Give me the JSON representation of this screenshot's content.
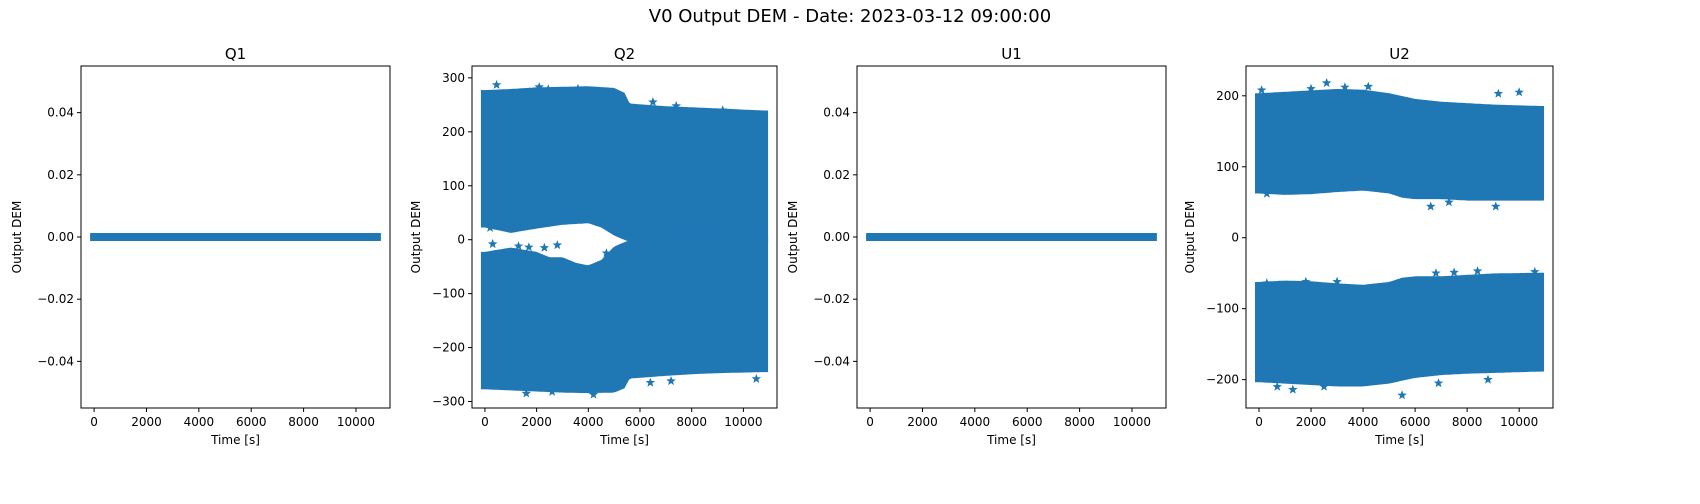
{
  "figure": {
    "suptitle": "V0 Output DEM - Date: 2023-03-12 09:00:00"
  },
  "colors": {
    "marker": "#1f77b4",
    "axes": "#000000"
  },
  "chart_data": [
    {
      "type": "scatter",
      "title": "Q1",
      "xlabel": "Time [s]",
      "ylabel": "Output DEM",
      "xlim": [
        -500,
        11300
      ],
      "ylim": [
        -0.055,
        0.055
      ],
      "xticks": [
        0,
        2000,
        4000,
        6000,
        8000,
        10000
      ],
      "xtick_labels": [
        "0",
        "2000",
        "4000",
        "6000",
        "8000",
        "10000"
      ],
      "yticks": [
        -0.04,
        -0.02,
        0.0,
        0.02,
        0.04
      ],
      "ytick_labels": [
        "−0.04",
        "−0.02",
        "0.00",
        "0.02",
        "0.04"
      ],
      "marker": "star",
      "series": [
        {
          "x_range": [
            0,
            10800
          ],
          "bands": [
            {
              "lower": [
                [
                  0,
                  0
                ],
                [
                  10800,
                  0
                ]
              ],
              "upper": [
                [
                  0,
                  0
                ],
                [
                  10800,
                  0
                ]
              ]
            }
          ]
        }
      ],
      "outliers": []
    },
    {
      "type": "scatter",
      "title": "Q2",
      "xlabel": "Time [s]",
      "ylabel": "Output DEM",
      "xlim": [
        -500,
        11300
      ],
      "ylim": [
        -312,
        322
      ],
      "xticks": [
        0,
        2000,
        4000,
        6000,
        8000,
        10000
      ],
      "xtick_labels": [
        "0",
        "2000",
        "4000",
        "6000",
        "8000",
        "10000"
      ],
      "yticks": [
        -300,
        -200,
        -100,
        0,
        100,
        200,
        300
      ],
      "ytick_labels": [
        "−300",
        "−200",
        "−100",
        "0",
        "100",
        "200",
        "300"
      ],
      "marker": "star",
      "series": [
        {
          "x_range": [
            0,
            10800
          ],
          "bands": [
            {
              "upper": [
                [
                  0,
                  270
                ],
                [
                  1000,
                  272
                ],
                [
                  2000,
                  275
                ],
                [
                  3000,
                  276
                ],
                [
                  4000,
                  277
                ],
                [
                  5000,
                  274
                ],
                [
                  5400,
                  265
                ],
                [
                  5600,
                  245
                ],
                [
                  7000,
                  240
                ],
                [
                  8000,
                  238
                ],
                [
                  9000,
                  236
                ],
                [
                  10800,
                  232
                ]
              ],
              "lower": [
                [
                  0,
                  30
                ],
                [
                  1000,
                  20
                ],
                [
                  2000,
                  28
                ],
                [
                  3000,
                  35
                ],
                [
                  4000,
                  38
                ],
                [
                  4500,
                  30
                ],
                [
                  5000,
                  15
                ],
                [
                  5500,
                  5
                ],
                [
                  6000,
                  5
                ],
                [
                  7000,
                  3
                ],
                [
                  8000,
                  3
                ],
                [
                  9000,
                  2
                ],
                [
                  10800,
                  2
                ]
              ]
            },
            {
              "upper": [
                [
                  0,
                  -30
                ],
                [
                  1000,
                  -22
                ],
                [
                  2000,
                  -30
                ],
                [
                  2500,
                  -40
                ],
                [
                  3000,
                  -40
                ],
                [
                  3500,
                  -50
                ],
                [
                  4000,
                  -55
                ],
                [
                  4500,
                  -45
                ],
                [
                  5000,
                  -20
                ],
                [
                  5500,
                  -10
                ],
                [
                  6000,
                  -5
                ],
                [
                  7000,
                  -3
                ],
                [
                  8000,
                  -3
                ],
                [
                  10800,
                  -2
                ]
              ],
              "lower": [
                [
                  0,
                  -270
                ],
                [
                  1000,
                  -272
                ],
                [
                  2000,
                  -274
                ],
                [
                  3000,
                  -276
                ],
                [
                  4000,
                  -277
                ],
                [
                  5000,
                  -276
                ],
                [
                  5400,
                  -268
                ],
                [
                  5600,
                  -250
                ],
                [
                  7000,
                  -245
                ],
                [
                  8000,
                  -242
                ],
                [
                  9000,
                  -240
                ],
                [
                  10800,
                  -238
                ]
              ]
            }
          ]
        }
      ],
      "outliers": [
        [
          450,
          287
        ],
        [
          2100,
          283
        ],
        [
          2450,
          279
        ],
        [
          3600,
          280
        ],
        [
          6500,
          255
        ],
        [
          7400,
          248
        ],
        [
          9200,
          240
        ],
        [
          200,
          22
        ],
        [
          600,
          27
        ],
        [
          1200,
          30
        ],
        [
          2200,
          30
        ],
        [
          3000,
          40
        ],
        [
          3900,
          42
        ],
        [
          300,
          -8
        ],
        [
          1300,
          -12
        ],
        [
          1700,
          -14
        ],
        [
          2300,
          -15
        ],
        [
          2800,
          -10
        ],
        [
          4700,
          -25
        ],
        [
          1600,
          -285
        ],
        [
          2600,
          -282
        ],
        [
          4200,
          -287
        ],
        [
          6400,
          -265
        ],
        [
          7200,
          -262
        ],
        [
          10500,
          -258
        ]
      ]
    },
    {
      "type": "scatter",
      "title": "U1",
      "xlabel": "Time [s]",
      "ylabel": "Output DEM",
      "xlim": [
        -500,
        11300
      ],
      "ylim": [
        -0.055,
        0.055
      ],
      "xticks": [
        0,
        2000,
        4000,
        6000,
        8000,
        10000
      ],
      "xtick_labels": [
        "0",
        "2000",
        "4000",
        "6000",
        "8000",
        "10000"
      ],
      "yticks": [
        -0.04,
        -0.02,
        0.0,
        0.02,
        0.04
      ],
      "ytick_labels": [
        "−0.04",
        "−0.02",
        "0.00",
        "0.02",
        "0.04"
      ],
      "marker": "star",
      "series": [
        {
          "x_range": [
            0,
            10800
          ],
          "bands": [
            {
              "lower": [
                [
                  0,
                  0
                ],
                [
                  10800,
                  0
                ]
              ],
              "upper": [
                [
                  0,
                  0
                ],
                [
                  10800,
                  0
                ]
              ]
            }
          ]
        }
      ],
      "outliers": []
    },
    {
      "type": "scatter",
      "title": "U2",
      "xlabel": "Time [s]",
      "ylabel": "Output DEM",
      "xlim": [
        -500,
        11300
      ],
      "ylim": [
        -240,
        242
      ],
      "xticks": [
        0,
        2000,
        4000,
        6000,
        8000,
        10000
      ],
      "xtick_labels": [
        "0",
        "2000",
        "4000",
        "6000",
        "8000",
        "10000"
      ],
      "yticks": [
        -200,
        -100,
        0,
        100,
        200
      ],
      "ytick_labels": [
        "−200",
        "−100",
        "0",
        "100",
        "200"
      ],
      "marker": "star",
      "series": [
        {
          "x_range": [
            0,
            10800
          ],
          "bands": [
            {
              "upper": [
                [
                  0,
                  198
                ],
                [
                  1000,
                  200
                ],
                [
                  2000,
                  202
                ],
                [
                  3000,
                  204
                ],
                [
                  4000,
                  203
                ],
                [
                  5000,
                  198
                ],
                [
                  6000,
                  190
                ],
                [
                  7000,
                  186
                ],
                [
                  8000,
                  184
                ],
                [
                  9000,
                  182
                ],
                [
                  10800,
                  180
                ]
              ],
              "lower": [
                [
                  0,
                  68
                ],
                [
                  1000,
                  66
                ],
                [
                  2000,
                  67
                ],
                [
                  3000,
                  70
                ],
                [
                  4000,
                  72
                ],
                [
                  5000,
                  68
                ],
                [
                  5500,
                  62
                ],
                [
                  6000,
                  60
                ],
                [
                  7000,
                  60
                ],
                [
                  8000,
                  58
                ],
                [
                  9000,
                  58
                ],
                [
                  10800,
                  58
                ]
              ]
            },
            {
              "upper": [
                [
                  0,
                  -68
                ],
                [
                  1000,
                  -66
                ],
                [
                  2000,
                  -67
                ],
                [
                  3000,
                  -70
                ],
                [
                  4000,
                  -72
                ],
                [
                  5000,
                  -68
                ],
                [
                  5500,
                  -62
                ],
                [
                  6000,
                  -60
                ],
                [
                  7000,
                  -60
                ],
                [
                  8000,
                  -58
                ],
                [
                  9000,
                  -56
                ],
                [
                  10800,
                  -55
                ]
              ],
              "lower": [
                [
                  0,
                  -198
                ],
                [
                  1000,
                  -200
                ],
                [
                  2000,
                  -202
                ],
                [
                  3000,
                  -204
                ],
                [
                  4000,
                  -204
                ],
                [
                  5000,
                  -200
                ],
                [
                  6000,
                  -192
                ],
                [
                  7000,
                  -188
                ],
                [
                  8000,
                  -186
                ],
                [
                  9000,
                  -185
                ],
                [
                  10800,
                  -183
                ]
              ]
            }
          ]
        }
      ],
      "outliers": [
        [
          100,
          208
        ],
        [
          2000,
          210
        ],
        [
          2600,
          218
        ],
        [
          3300,
          212
        ],
        [
          4200,
          213
        ],
        [
          9200,
          203
        ],
        [
          10000,
          205
        ],
        [
          300,
          62
        ],
        [
          6600,
          44
        ],
        [
          7300,
          50
        ],
        [
          9100,
          44
        ],
        [
          300,
          -64
        ],
        [
          1800,
          -62
        ],
        [
          3000,
          -62
        ],
        [
          6800,
          -50
        ],
        [
          7500,
          -49
        ],
        [
          8400,
          -47
        ],
        [
          10600,
          -48
        ],
        [
          700,
          -210
        ],
        [
          1300,
          -214
        ],
        [
          2500,
          -210
        ],
        [
          5500,
          -222
        ],
        [
          6900,
          -205
        ],
        [
          8800,
          -200
        ]
      ]
    }
  ]
}
